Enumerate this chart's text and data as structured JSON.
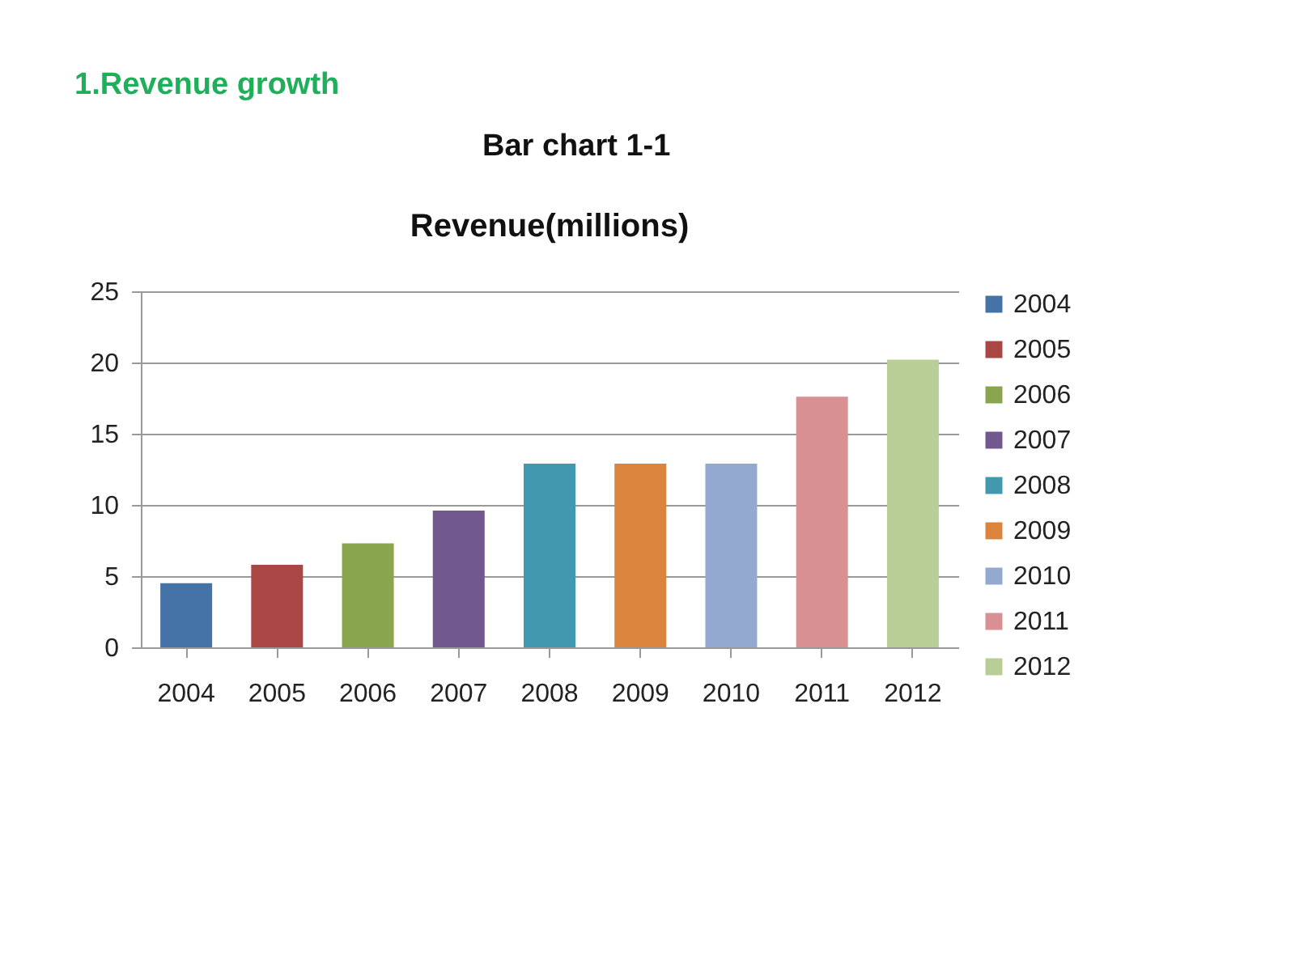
{
  "chart_data": {
    "type": "bar",
    "title": "Revenue(millions)",
    "annotations": [
      "1.Revenue growth",
      "Bar chart 1-1"
    ],
    "categories": [
      "2004",
      "2005",
      "2006",
      "2007",
      "2008",
      "2009",
      "2010",
      "2011",
      "2012"
    ],
    "series": [
      {
        "name": "2004",
        "color": "#4572a7",
        "values": [
          4.5,
          null,
          null,
          null,
          null,
          null,
          null,
          null,
          null
        ]
      },
      {
        "name": "2005",
        "color": "#aa4643",
        "values": [
          null,
          5.8,
          null,
          null,
          null,
          null,
          null,
          null,
          null
        ]
      },
      {
        "name": "2006",
        "color": "#89a54e",
        "values": [
          null,
          null,
          7.3,
          null,
          null,
          null,
          null,
          null,
          null
        ]
      },
      {
        "name": "2007",
        "color": "#71588f",
        "values": [
          null,
          null,
          null,
          9.6,
          null,
          null,
          null,
          null,
          null
        ]
      },
      {
        "name": "2008",
        "color": "#4198af",
        "values": [
          null,
          null,
          null,
          null,
          12.9,
          null,
          null,
          null,
          null
        ]
      },
      {
        "name": "2009",
        "color": "#db843d",
        "values": [
          null,
          null,
          null,
          null,
          null,
          12.9,
          null,
          null,
          null
        ]
      },
      {
        "name": "2010",
        "color": "#93a9cf",
        "values": [
          null,
          null,
          null,
          null,
          null,
          null,
          12.9,
          null,
          null
        ]
      },
      {
        "name": "2011",
        "color": "#d89093",
        "values": [
          null,
          null,
          null,
          null,
          null,
          null,
          null,
          17.6,
          null
        ]
      },
      {
        "name": "2012",
        "color": "#b9cd96",
        "values": [
          null,
          null,
          null,
          null,
          null,
          null,
          null,
          null,
          20.2
        ]
      }
    ],
    "ylim": [
      0,
      25
    ],
    "yticks": [
      0,
      5,
      10,
      15,
      20,
      25
    ],
    "grid": "y",
    "legend": "right"
  }
}
